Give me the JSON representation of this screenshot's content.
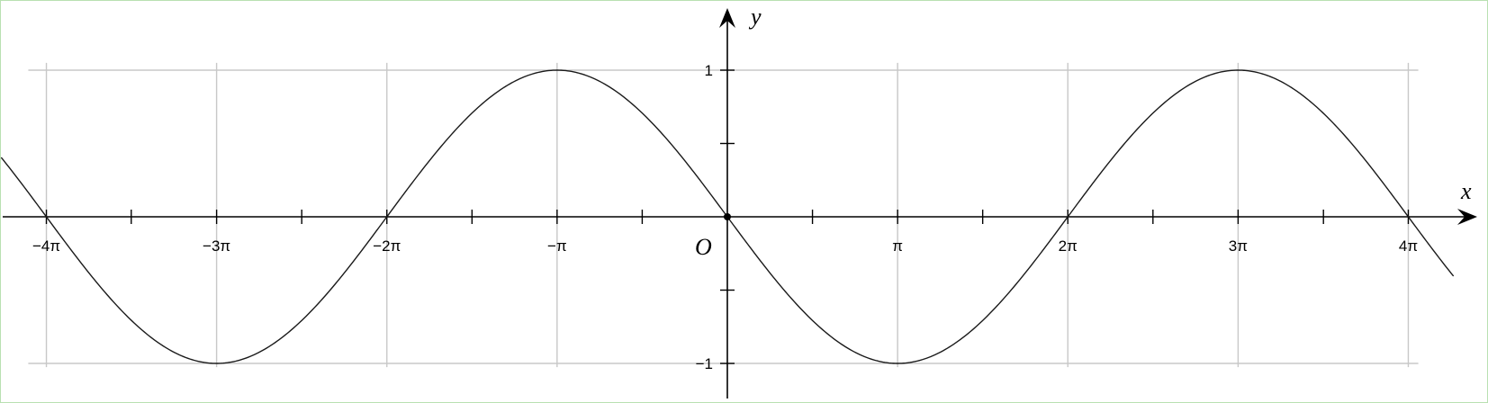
{
  "chart_data": {
    "type": "line",
    "xlabel": "x",
    "ylabel": "y",
    "origin_label": "O",
    "xlim": [
      -12.6,
      12.3
    ],
    "ylim": [
      -1.25,
      1.4
    ],
    "grid": true,
    "x_ticks": [
      {
        "value": -12.566,
        "label": "−4π"
      },
      {
        "value": -9.425,
        "label": "−3π"
      },
      {
        "value": -6.283,
        "label": "−2π"
      },
      {
        "value": -3.142,
        "label": "−π"
      },
      {
        "value": 3.142,
        "label": "π"
      },
      {
        "value": 6.283,
        "label": "2π"
      },
      {
        "value": 9.425,
        "label": "3π"
      },
      {
        "value": 12.566,
        "label": "4π"
      }
    ],
    "x_minor_ticks": [
      -11.0,
      -7.854,
      -4.712,
      -1.571,
      1.571,
      4.712,
      7.854,
      11.0
    ],
    "y_ticks": [
      {
        "value": 1,
        "label": "1"
      },
      {
        "value": -1,
        "label": "−1"
      }
    ],
    "y_minor_ticks": [
      0.5,
      -0.5
    ],
    "series": [
      {
        "function": "y = -sin(x / 2)",
        "x": [
          -13.4,
          -12.566,
          -11.0,
          -9.425,
          -7.854,
          -6.283,
          -4.712,
          -3.142,
          -1.571,
          0,
          1.571,
          3.142,
          4.712,
          6.283,
          7.854,
          9.425,
          11.0,
          12.566,
          13.4
        ],
        "y": [
          0.41,
          0,
          -0.707,
          -1,
          -0.707,
          0,
          0.707,
          1,
          0.707,
          0,
          -0.707,
          -1,
          -0.707,
          0,
          0.707,
          1,
          0.707,
          0,
          -0.41
        ]
      }
    ]
  }
}
